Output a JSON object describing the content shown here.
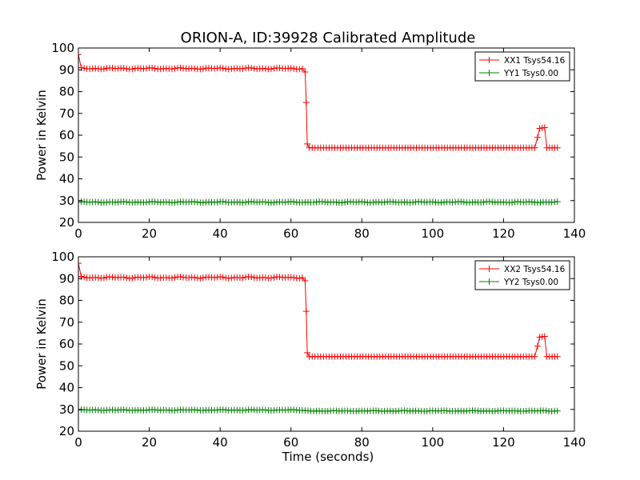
{
  "figure": {
    "title": "ORION-A, ID:39928 Calibrated Amplitude",
    "xlabel": "Time (seconds)"
  },
  "chart_data": [
    {
      "type": "line",
      "ylabel": "Power in Kelvin",
      "xlim": [
        0,
        140
      ],
      "ylim": [
        20,
        100
      ],
      "x_ticks": [
        0,
        20,
        40,
        60,
        80,
        100,
        120,
        140
      ],
      "y_ticks": [
        20,
        30,
        40,
        50,
        60,
        70,
        80,
        90,
        100
      ],
      "grid": false,
      "legend_position": "top-right",
      "sample_interval": 0.8,
      "series": [
        {
          "name": "XX1 Tsys54.16",
          "color": "#ff0000",
          "marker": "plus",
          "segments": [
            {
              "from": 0,
              "to": 0.8,
              "values": [
                97,
                91
              ]
            },
            {
              "from": 0.8,
              "to": 63.2,
              "level": 90.6,
              "ripple": 0.35
            },
            {
              "from": 64,
              "to": 64,
              "value": 89
            },
            {
              "from": 64.3,
              "to": 64.3,
              "value": 75
            },
            {
              "from": 64.6,
              "to": 64.6,
              "value": 56
            },
            {
              "from": 65.2,
              "to": 128.8,
              "level": 54.2,
              "ripple": 0
            },
            {
              "from": 129.6,
              "to": 129.6,
              "value": 59
            },
            {
              "from": 130.2,
              "to": 131.6,
              "level": 63.3,
              "ripple": 0.3
            },
            {
              "from": 132.2,
              "to": 135.2,
              "level": 54.2,
              "ripple": 0
            }
          ]
        },
        {
          "name": "YY1 Tsys0.00",
          "color": "#008000",
          "marker": "plus",
          "segments": [
            {
              "from": 0,
              "to": 135.2,
              "level": 29.3,
              "ripple": 0.25
            }
          ]
        }
      ]
    },
    {
      "type": "line",
      "ylabel": "Power in Kelvin",
      "xlim": [
        0,
        140
      ],
      "ylim": [
        20,
        100
      ],
      "x_ticks": [
        0,
        20,
        40,
        60,
        80,
        100,
        120,
        140
      ],
      "y_ticks": [
        20,
        30,
        40,
        50,
        60,
        70,
        80,
        90,
        100
      ],
      "grid": false,
      "legend_position": "top-right",
      "sample_interval": 0.8,
      "series": [
        {
          "name": "XX2 Tsys54.16",
          "color": "#ff0000",
          "marker": "plus",
          "segments": [
            {
              "from": 0,
              "to": 0.8,
              "values": [
                97,
                91
              ]
            },
            {
              "from": 0.8,
              "to": 63.2,
              "level": 90.5,
              "ripple": 0.35
            },
            {
              "from": 64,
              "to": 64,
              "value": 89
            },
            {
              "from": 64.3,
              "to": 64.3,
              "value": 75
            },
            {
              "from": 64.6,
              "to": 64.6,
              "value": 56
            },
            {
              "from": 65.2,
              "to": 128.8,
              "level": 54.2,
              "ripple": 0
            },
            {
              "from": 129.6,
              "to": 129.6,
              "value": 59
            },
            {
              "from": 130.2,
              "to": 131.6,
              "level": 63.3,
              "ripple": 0.3
            },
            {
              "from": 132.2,
              "to": 135.2,
              "level": 54.2,
              "ripple": 0
            }
          ]
        },
        {
          "name": "YY2 Tsys0.00",
          "color": "#008000",
          "marker": "plus",
          "segments": [
            {
              "from": 0,
              "to": 63.2,
              "level": 29.7,
              "ripple": 0.2
            },
            {
              "from": 64,
              "to": 135.2,
              "level": 29.3,
              "ripple": 0.15
            }
          ]
        }
      ]
    }
  ]
}
